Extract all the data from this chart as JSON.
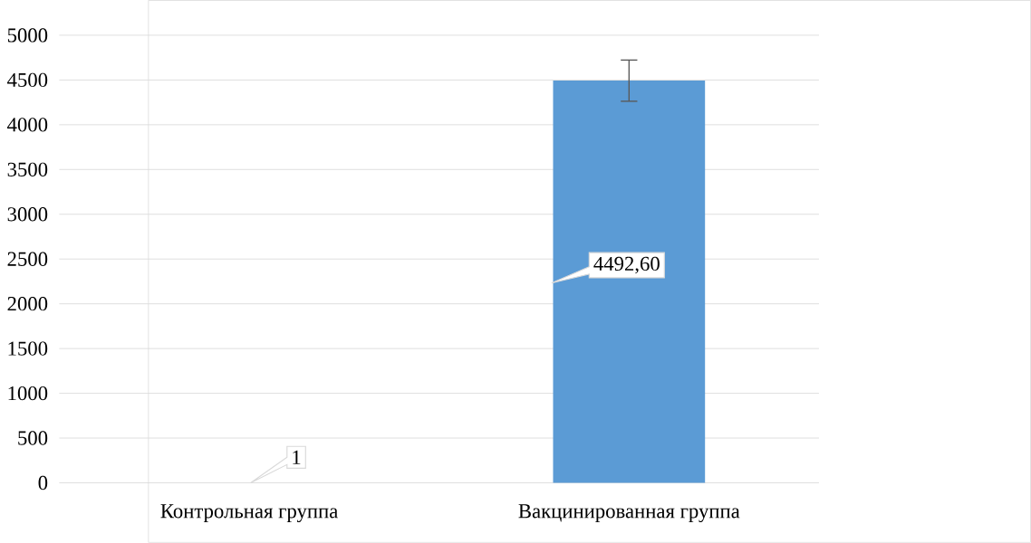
{
  "chart_data": {
    "type": "bar",
    "categories": [
      "Контрольная группа",
      "Вакцинированная группа"
    ],
    "values": [
      1,
      4492.6
    ],
    "value_labels": [
      "1",
      "4492,60"
    ],
    "errors": [
      null,
      230
    ],
    "color": "#5b9bd5",
    "ylim": [
      0,
      5000
    ],
    "yticks": [
      0,
      500,
      1000,
      1500,
      2000,
      2500,
      3000,
      3500,
      4000,
      4500,
      5000
    ],
    "grid": "y"
  }
}
